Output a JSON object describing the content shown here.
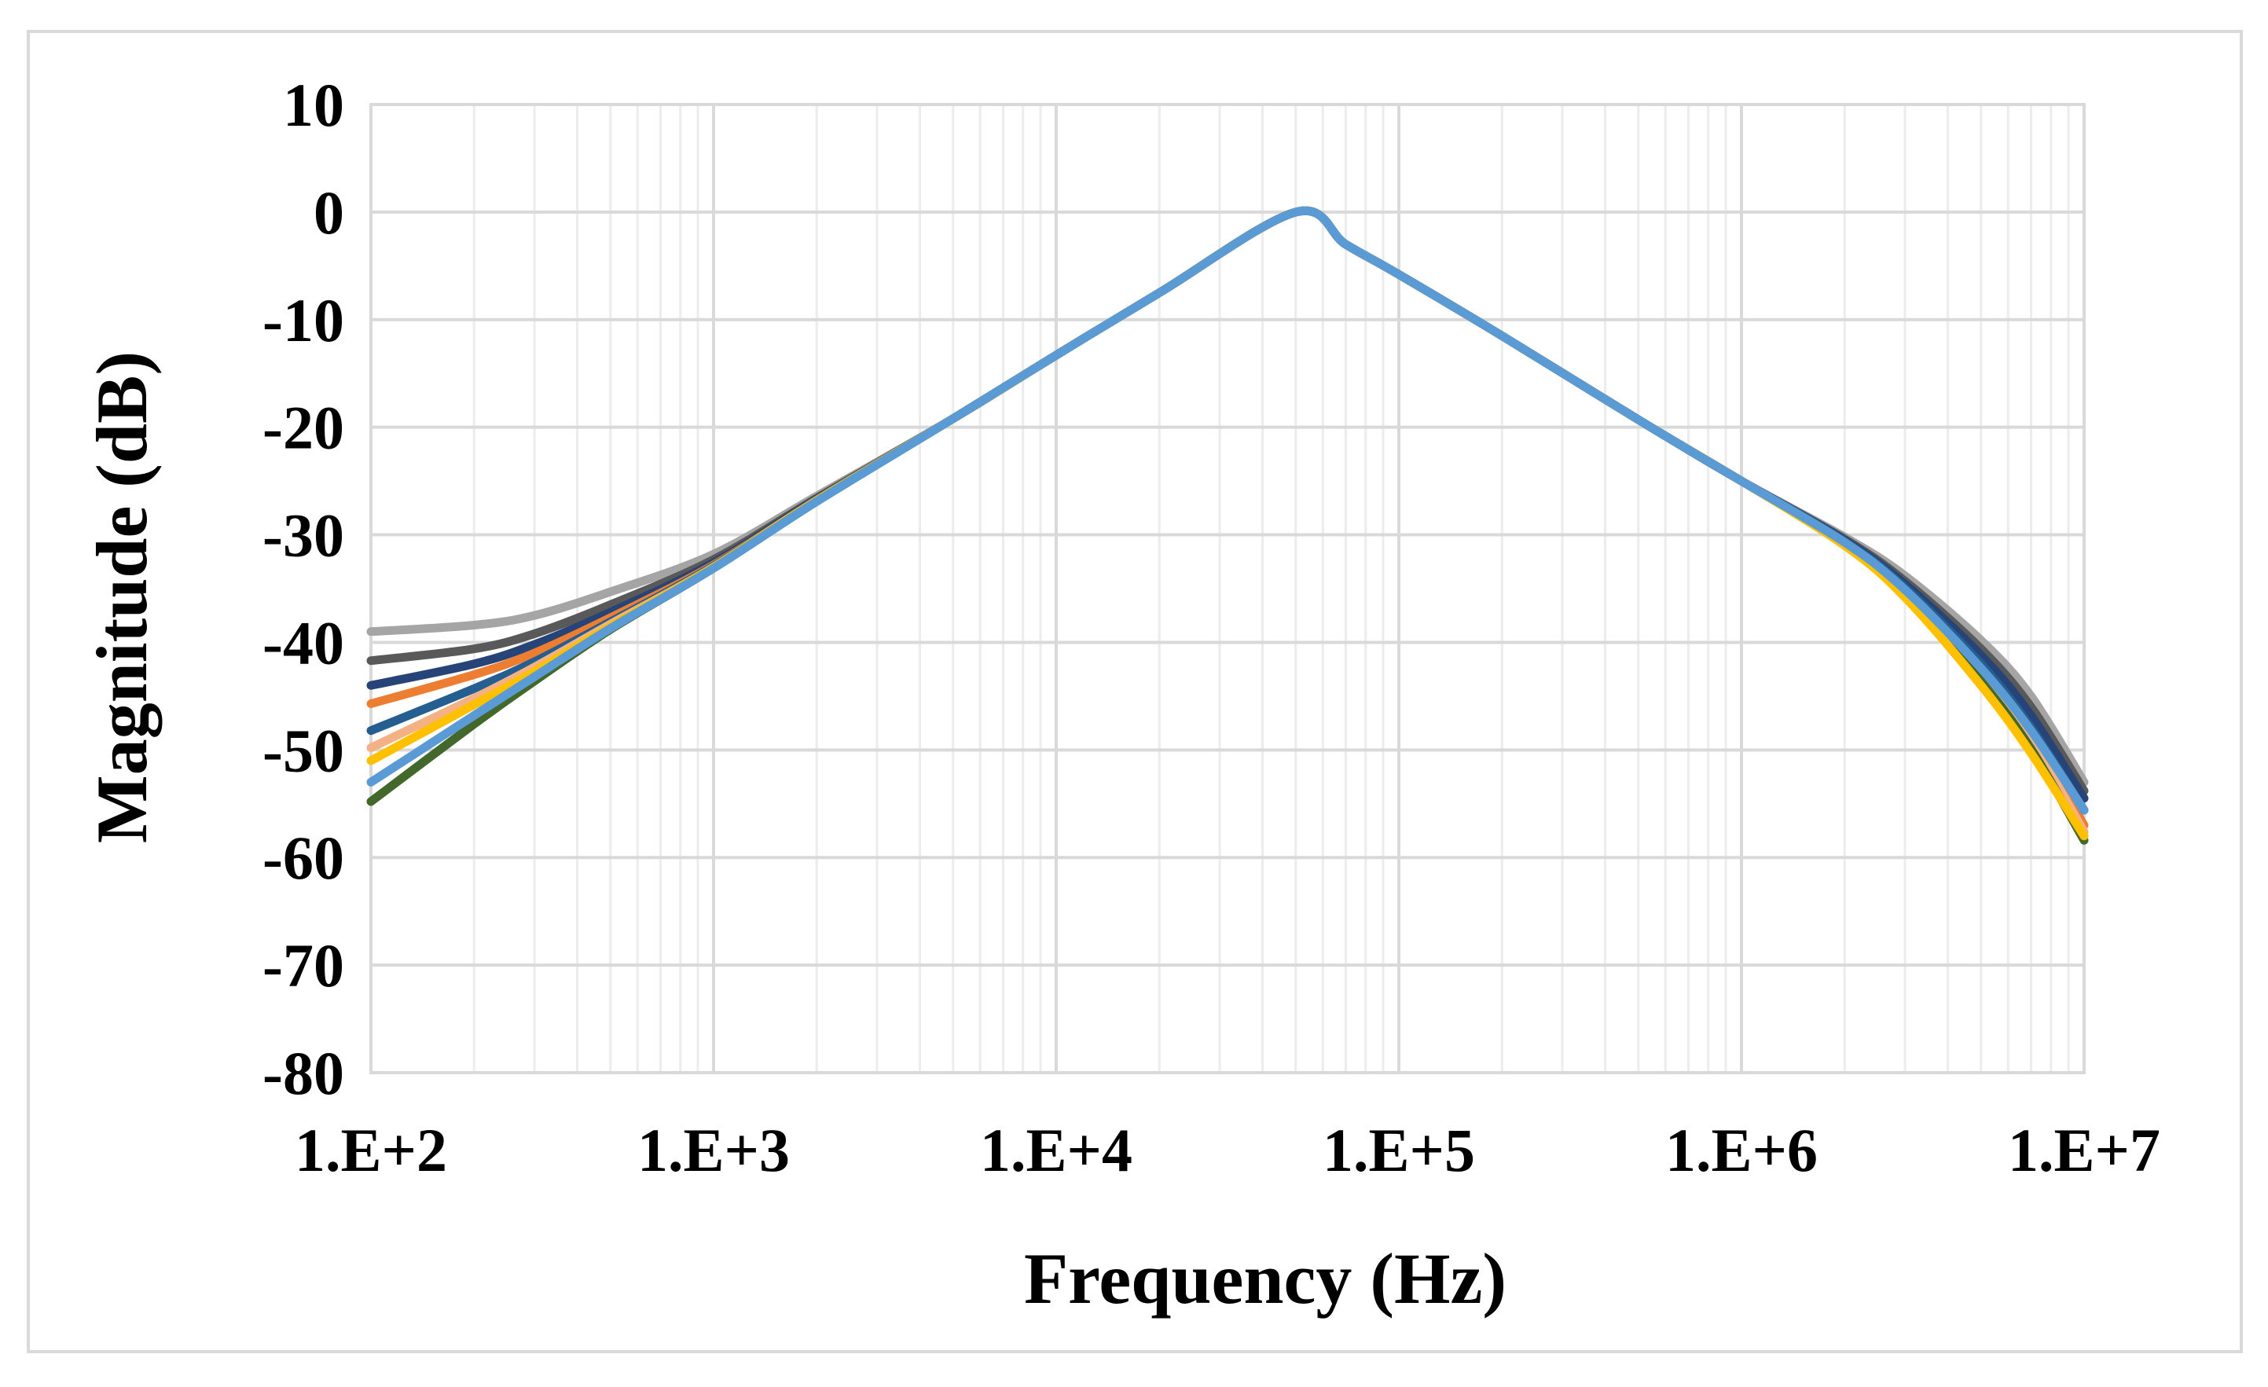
{
  "chart_data": {
    "type": "line",
    "title": "",
    "xlabel": "Frequency (Hz)",
    "ylabel": "Magnitude (dB)",
    "xscale": "log",
    "xlim": [
      100,
      10000000
    ],
    "ylim": [
      -80,
      10
    ],
    "grid": true,
    "legend": "none",
    "x_ticks": [
      100,
      1000,
      10000,
      100000,
      1000000,
      10000000
    ],
    "x_tick_labels": [
      "1.E+2",
      "1.E+3",
      "1.E+4",
      "1.E+5",
      "1.E+6",
      "1.E+7"
    ],
    "y_ticks": [
      10,
      0,
      -10,
      -20,
      -30,
      -40,
      -50,
      -60,
      -70,
      -80
    ],
    "y_tick_labels": [
      "10",
      "0",
      "-10",
      "-20",
      "-30",
      "-40",
      "-50",
      "-60",
      "-70",
      "-80"
    ],
    "colors": {
      "grid_major": "#d9d9d9",
      "grid_minor": "#ececec",
      "frame": "#d9d9d9"
    },
    "series": [
      {
        "name": "curve-1",
        "color": "#a5a5a5",
        "points": [
          [
            100,
            -39
          ],
          [
            200,
            -38.4
          ],
          [
            300,
            -37.5
          ],
          [
            500,
            -35.3
          ],
          [
            1000,
            -31.8
          ],
          [
            2000,
            -26.4
          ],
          [
            5000,
            -19.2
          ],
          [
            10000,
            -13.3
          ],
          [
            20000,
            -7.5
          ],
          [
            50000,
            0
          ],
          [
            70000,
            -3
          ],
          [
            100000,
            -5.8
          ],
          [
            200000,
            -11.5
          ],
          [
            500000,
            -19.3
          ],
          [
            1000000,
            -25
          ],
          [
            2000000,
            -30.2
          ],
          [
            3000000,
            -33.8
          ],
          [
            5000000,
            -39.8
          ],
          [
            7000000,
            -45
          ],
          [
            10000000,
            -53
          ]
        ]
      },
      {
        "name": "curve-2",
        "color": "#595959",
        "points": [
          [
            100,
            -41.7
          ],
          [
            200,
            -40.6
          ],
          [
            300,
            -39.2
          ],
          [
            500,
            -36.5
          ],
          [
            1000,
            -32.3
          ],
          [
            2000,
            -26.6
          ],
          [
            5000,
            -19.2
          ],
          [
            10000,
            -13.3
          ],
          [
            20000,
            -7.5
          ],
          [
            50000,
            0
          ],
          [
            70000,
            -3
          ],
          [
            100000,
            -5.8
          ],
          [
            200000,
            -11.5
          ],
          [
            500000,
            -19.3
          ],
          [
            1000000,
            -25
          ],
          [
            2000000,
            -30.4
          ],
          [
            3000000,
            -34.3
          ],
          [
            5000000,
            -40.6
          ],
          [
            7000000,
            -46
          ],
          [
            10000000,
            -53.8
          ]
        ]
      },
      {
        "name": "curve-3",
        "color": "#264478",
        "points": [
          [
            100,
            -44
          ],
          [
            200,
            -42
          ],
          [
            300,
            -40.2
          ],
          [
            500,
            -37.2
          ],
          [
            1000,
            -32.6
          ],
          [
            2000,
            -26.7
          ],
          [
            5000,
            -19.2
          ],
          [
            10000,
            -13.3
          ],
          [
            20000,
            -7.5
          ],
          [
            50000,
            0
          ],
          [
            70000,
            -3
          ],
          [
            100000,
            -5.8
          ],
          [
            200000,
            -11.5
          ],
          [
            500000,
            -19.3
          ],
          [
            1000000,
            -25
          ],
          [
            2000000,
            -30.5
          ],
          [
            3000000,
            -34.6
          ],
          [
            5000000,
            -41.2
          ],
          [
            7000000,
            -46.8
          ],
          [
            10000000,
            -54.5
          ]
        ]
      },
      {
        "name": "curve-4",
        "color": "#ed7d31",
        "points": [
          [
            100,
            -45.7
          ],
          [
            200,
            -43
          ],
          [
            300,
            -41
          ],
          [
            500,
            -37.7
          ],
          [
            1000,
            -32.8
          ],
          [
            2000,
            -26.8
          ],
          [
            5000,
            -19.2
          ],
          [
            10000,
            -13.3
          ],
          [
            20000,
            -7.5
          ],
          [
            50000,
            0
          ],
          [
            70000,
            -3
          ],
          [
            100000,
            -5.8
          ],
          [
            200000,
            -11.5
          ],
          [
            500000,
            -19.3
          ],
          [
            1000000,
            -25
          ],
          [
            2000000,
            -30.7
          ],
          [
            3000000,
            -35.2
          ],
          [
            5000000,
            -42.6
          ],
          [
            7000000,
            -48.5
          ],
          [
            10000000,
            -57
          ]
        ]
      },
      {
        "name": "curve-5",
        "color": "#255e91",
        "points": [
          [
            100,
            -48.2
          ],
          [
            200,
            -44.3
          ],
          [
            300,
            -41.8
          ],
          [
            500,
            -38.1
          ],
          [
            1000,
            -32.9
          ],
          [
            2000,
            -26.8
          ],
          [
            5000,
            -19.2
          ],
          [
            10000,
            -13.3
          ],
          [
            20000,
            -7.5
          ],
          [
            50000,
            0
          ],
          [
            70000,
            -3
          ],
          [
            100000,
            -5.8
          ],
          [
            200000,
            -11.5
          ],
          [
            500000,
            -19.3
          ],
          [
            1000000,
            -25
          ],
          [
            2000000,
            -30.6
          ],
          [
            3000000,
            -34.9
          ],
          [
            5000000,
            -42
          ],
          [
            7000000,
            -47.9
          ],
          [
            10000000,
            -55.6
          ]
        ]
      },
      {
        "name": "curve-6",
        "color": "#f4b183",
        "points": [
          [
            100,
            -49.8
          ],
          [
            200,
            -45.2
          ],
          [
            300,
            -42.3
          ],
          [
            500,
            -38.3
          ],
          [
            1000,
            -33
          ],
          [
            2000,
            -26.8
          ],
          [
            5000,
            -19.2
          ],
          [
            10000,
            -13.3
          ],
          [
            20000,
            -7.5
          ],
          [
            50000,
            0
          ],
          [
            70000,
            -3
          ],
          [
            100000,
            -5.8
          ],
          [
            200000,
            -11.5
          ],
          [
            500000,
            -19.3
          ],
          [
            1000000,
            -25
          ],
          [
            2000000,
            -30.8
          ],
          [
            3000000,
            -35.4
          ],
          [
            5000000,
            -43.1
          ],
          [
            7000000,
            -49.2
          ],
          [
            10000000,
            -57.6
          ]
        ]
      },
      {
        "name": "curve-7",
        "color": "#43682b",
        "points": [
          [
            100,
            -54.8
          ],
          [
            200,
            -47.6
          ],
          [
            300,
            -43.6
          ],
          [
            500,
            -38.8
          ],
          [
            1000,
            -33.1
          ],
          [
            2000,
            -26.9
          ],
          [
            5000,
            -19.2
          ],
          [
            10000,
            -13.3
          ],
          [
            20000,
            -7.5
          ],
          [
            50000,
            0
          ],
          [
            70000,
            -3
          ],
          [
            100000,
            -5.8
          ],
          [
            200000,
            -11.5
          ],
          [
            500000,
            -19.3
          ],
          [
            1000000,
            -25
          ],
          [
            2000000,
            -30.9
          ],
          [
            3000000,
            -35.6
          ],
          [
            5000000,
            -43.6
          ],
          [
            7000000,
            -49.9
          ],
          [
            10000000,
            -58.4
          ]
        ]
      },
      {
        "name": "curve-8",
        "color": "#ffc000",
        "points": [
          [
            100,
            -51
          ],
          [
            200,
            -45.8
          ],
          [
            300,
            -42.7
          ],
          [
            500,
            -38.5
          ],
          [
            1000,
            -33
          ],
          [
            2000,
            -26.8
          ],
          [
            5000,
            -19.2
          ],
          [
            10000,
            -13.3
          ],
          [
            20000,
            -7.5
          ],
          [
            50000,
            0
          ],
          [
            70000,
            -3
          ],
          [
            100000,
            -5.8
          ],
          [
            200000,
            -11.5
          ],
          [
            500000,
            -19.3
          ],
          [
            1000000,
            -25
          ],
          [
            2000000,
            -31
          ],
          [
            3000000,
            -35.8
          ],
          [
            5000000,
            -44
          ],
          [
            7000000,
            -50.3
          ],
          [
            10000000,
            -58
          ]
        ]
      },
      {
        "name": "curve-9",
        "color": "#5b9bd5",
        "points": [
          [
            100,
            -53
          ],
          [
            200,
            -46.8
          ],
          [
            300,
            -43.2
          ],
          [
            500,
            -38.7
          ],
          [
            1000,
            -33.1
          ],
          [
            2000,
            -26.9
          ],
          [
            5000,
            -19.2
          ],
          [
            10000,
            -13.3
          ],
          [
            20000,
            -7.5
          ],
          [
            50000,
            0
          ],
          [
            70000,
            -3
          ],
          [
            100000,
            -5.8
          ],
          [
            200000,
            -11.5
          ],
          [
            500000,
            -19.3
          ],
          [
            1000000,
            -25
          ],
          [
            2000000,
            -30.7
          ],
          [
            3000000,
            -35.1
          ],
          [
            5000000,
            -42.4
          ],
          [
            7000000,
            -48.2
          ],
          [
            10000000,
            -55.6
          ]
        ]
      }
    ]
  }
}
